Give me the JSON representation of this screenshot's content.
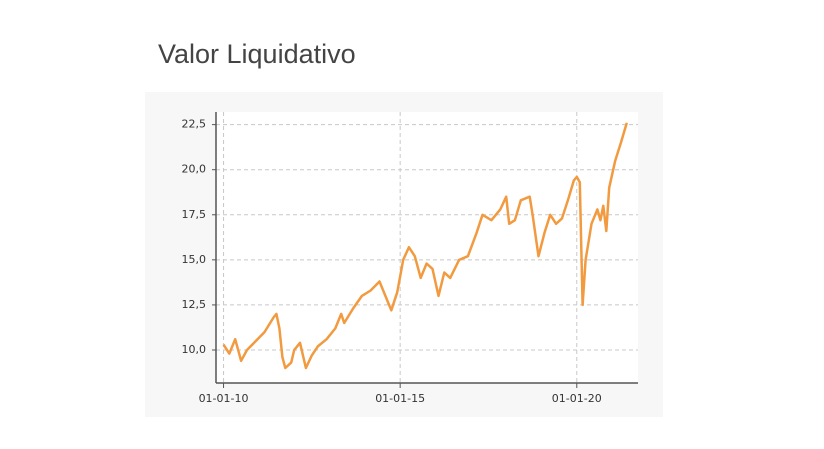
{
  "chart_data": {
    "type": "line",
    "title": "Valor Liquidativo",
    "x": [
      "2010-01-01",
      "2010-03-01",
      "2010-05-01",
      "2010-07-01",
      "2010-09-01",
      "2010-12-01",
      "2011-03-01",
      "2011-06-01",
      "2011-07-01",
      "2011-08-01",
      "2011-09-01",
      "2011-10-01",
      "2011-12-01",
      "2012-01-01",
      "2012-03-01",
      "2012-05-01",
      "2012-07-01",
      "2012-09-01",
      "2012-12-01",
      "2013-03-01",
      "2013-05-01",
      "2013-06-01",
      "2013-09-01",
      "2013-12-01",
      "2014-03-01",
      "2014-06-01",
      "2014-08-01",
      "2014-10-01",
      "2014-12-01",
      "2015-02-01",
      "2015-04-01",
      "2015-06-01",
      "2015-08-01",
      "2015-10-01",
      "2015-12-01",
      "2016-02-01",
      "2016-04-01",
      "2016-06-01",
      "2016-09-01",
      "2016-12-01",
      "2017-03-01",
      "2017-05-01",
      "2017-08-01",
      "2017-11-01",
      "2018-01-01",
      "2018-02-01",
      "2018-04-01",
      "2018-06-01",
      "2018-09-01",
      "2018-10-01",
      "2018-12-01",
      "2019-02-01",
      "2019-04-01",
      "2019-06-01",
      "2019-08-01",
      "2019-10-01",
      "2019-12-01",
      "2020-01-01",
      "2020-02-01",
      "2020-03-01",
      "2020-04-01",
      "2020-06-01",
      "2020-08-01",
      "2020-09-01",
      "2020-10-01",
      "2020-11-01",
      "2020-12-01",
      "2021-02-01",
      "2021-04-01",
      "2021-06-01"
    ],
    "values": [
      10.3,
      9.8,
      10.6,
      9.4,
      10.0,
      10.5,
      11.0,
      11.8,
      12.0,
      11.2,
      9.6,
      9.0,
      9.3,
      10.0,
      10.4,
      9.0,
      9.7,
      10.2,
      10.6,
      11.2,
      12.0,
      11.5,
      12.3,
      13.0,
      13.3,
      13.8,
      13.0,
      12.2,
      13.2,
      15.0,
      15.7,
      15.2,
      14.0,
      14.8,
      14.5,
      13.0,
      14.3,
      14.0,
      15.0,
      15.2,
      16.5,
      17.5,
      17.2,
      17.8,
      18.5,
      17.0,
      17.2,
      18.3,
      18.5,
      17.5,
      15.2,
      16.5,
      17.5,
      17.0,
      17.3,
      18.3,
      19.4,
      19.6,
      19.3,
      12.5,
      15.0,
      17.0,
      17.8,
      17.2,
      18.0,
      16.6,
      19.0,
      20.5,
      21.5,
      22.6
    ],
    "color": "#f29a3f",
    "xlim": [
      "2009-10-15",
      "2021-09-25"
    ],
    "xticks": [
      {
        "value": "2010-01-01",
        "label": "01-01-10"
      },
      {
        "value": "2015-01-01",
        "label": "01-01-15"
      },
      {
        "value": "2020-01-01",
        "label": "01-01-20"
      }
    ],
    "ylim": [
      8.17,
      23.2
    ],
    "yticks": [
      {
        "value": 10,
        "label": "10,0"
      },
      {
        "value": 12.5,
        "label": "12,5"
      },
      {
        "value": 15,
        "label": "15,0"
      },
      {
        "value": 17.5,
        "label": "17,5"
      },
      {
        "value": 20,
        "label": "20,0"
      },
      {
        "value": 22.5,
        "label": "22,5"
      }
    ],
    "grid": true
  }
}
